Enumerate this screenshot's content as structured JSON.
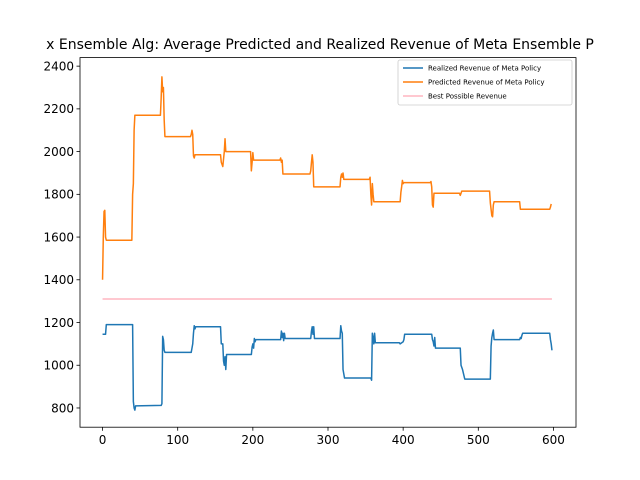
{
  "chart_data": {
    "type": "line",
    "title": "x Ensemble Alg: Average Predicted and Realized Revenue of Meta Ensemble P",
    "xlabel": "",
    "ylabel": "",
    "xlim": [
      -30,
      630
    ],
    "ylim": [
      710,
      2440
    ],
    "x_ticks": [
      0,
      100,
      200,
      300,
      400,
      500,
      600
    ],
    "y_ticks": [
      800,
      1000,
      1200,
      1400,
      1600,
      1800,
      2000,
      2200,
      2400
    ],
    "grid": false,
    "legend_position": "top-right",
    "series": [
      {
        "name": "Realized Revenue of Meta Policy",
        "color": "#1f77b4",
        "points": [
          [
            0,
            1145
          ],
          [
            4,
            1145
          ],
          [
            5,
            1190
          ],
          [
            40,
            1190
          ],
          [
            41,
            830
          ],
          [
            42,
            800
          ],
          [
            43,
            790
          ],
          [
            44,
            810
          ],
          [
            78,
            812
          ],
          [
            79,
            820
          ],
          [
            80,
            1135
          ],
          [
            81,
            1120
          ],
          [
            82,
            1070
          ],
          [
            83,
            1060
          ],
          [
            118,
            1060
          ],
          [
            119,
            1080
          ],
          [
            120,
            1100
          ],
          [
            121,
            1150
          ],
          [
            122,
            1185
          ],
          [
            123,
            1170
          ],
          [
            124,
            1180
          ],
          [
            157,
            1180
          ],
          [
            158,
            1100
          ],
          [
            160,
            1100
          ],
          [
            161,
            1020
          ],
          [
            162,
            1000
          ],
          [
            163,
            1040
          ],
          [
            164,
            980
          ],
          [
            165,
            1050
          ],
          [
            198,
            1050
          ],
          [
            199,
            1085
          ],
          [
            200,
            1100
          ],
          [
            201,
            1080
          ],
          [
            202,
            1125
          ],
          [
            203,
            1110
          ],
          [
            204,
            1120
          ],
          [
            237,
            1120
          ],
          [
            238,
            1160
          ],
          [
            239,
            1130
          ],
          [
            240,
            1150
          ],
          [
            241,
            1115
          ],
          [
            242,
            1150
          ],
          [
            243,
            1125
          ],
          [
            277,
            1125
          ],
          [
            278,
            1160
          ],
          [
            279,
            1180
          ],
          [
            280,
            1145
          ],
          [
            281,
            1180
          ],
          [
            282,
            1125
          ],
          [
            316,
            1125
          ],
          [
            317,
            1185
          ],
          [
            318,
            1160
          ],
          [
            319,
            1150
          ],
          [
            320,
            980
          ],
          [
            321,
            960
          ],
          [
            322,
            940
          ],
          [
            357,
            940
          ],
          [
            358,
            930
          ],
          [
            359,
            1150
          ],
          [
            360,
            1130
          ],
          [
            361,
            1100
          ],
          [
            362,
            1150
          ],
          [
            363,
            1105
          ],
          [
            395,
            1105
          ],
          [
            396,
            1100
          ],
          [
            400,
            1110
          ],
          [
            401,
            1120
          ],
          [
            402,
            1145
          ],
          [
            438,
            1145
          ],
          [
            439,
            1120
          ],
          [
            440,
            1110
          ],
          [
            441,
            1090
          ],
          [
            442,
            1130
          ],
          [
            443,
            1080
          ],
          [
            476,
            1080
          ],
          [
            477,
            1000
          ],
          [
            479,
            980
          ],
          [
            481,
            950
          ],
          [
            482,
            935
          ],
          [
            516,
            935
          ],
          [
            517,
            1090
          ],
          [
            518,
            1130
          ],
          [
            519,
            1150
          ],
          [
            520,
            1165
          ],
          [
            521,
            1120
          ],
          [
            555,
            1120
          ],
          [
            556,
            1130
          ],
          [
            557,
            1125
          ],
          [
            558,
            1140
          ],
          [
            559,
            1150
          ],
          [
            595,
            1150
          ],
          [
            596,
            1120
          ],
          [
            597,
            1100
          ],
          [
            598,
            1070
          ]
        ]
      },
      {
        "name": "Predicted Revenue of Meta Policy",
        "color": "#ff7f0e",
        "points": [
          [
            0,
            1400
          ],
          [
            1,
            1600
          ],
          [
            2,
            1720
          ],
          [
            3,
            1725
          ],
          [
            4,
            1600
          ],
          [
            5,
            1585
          ],
          [
            39,
            1585
          ],
          [
            40,
            1800
          ],
          [
            41,
            1850
          ],
          [
            42,
            2100
          ],
          [
            43,
            2170
          ],
          [
            77,
            2170
          ],
          [
            78,
            2250
          ],
          [
            79,
            2350
          ],
          [
            80,
            2280
          ],
          [
            81,
            2300
          ],
          [
            82,
            2150
          ],
          [
            83,
            2070
          ],
          [
            117,
            2070
          ],
          [
            118,
            2080
          ],
          [
            119,
            2100
          ],
          [
            120,
            2080
          ],
          [
            121,
            1980
          ],
          [
            122,
            1970
          ],
          [
            123,
            1985
          ],
          [
            157,
            1985
          ],
          [
            158,
            1950
          ],
          [
            160,
            1930
          ],
          [
            161,
            1965
          ],
          [
            162,
            2000
          ],
          [
            163,
            2060
          ],
          [
            164,
            2000
          ],
          [
            197,
            2000
          ],
          [
            198,
            1910
          ],
          [
            199,
            1950
          ],
          [
            200,
            1995
          ],
          [
            201,
            1960
          ],
          [
            202,
            1960
          ],
          [
            236,
            1960
          ],
          [
            237,
            1970
          ],
          [
            238,
            1950
          ],
          [
            239,
            1960
          ],
          [
            240,
            1895
          ],
          [
            276,
            1895
          ],
          [
            277,
            1910
          ],
          [
            278,
            1950
          ],
          [
            279,
            1985
          ],
          [
            280,
            1950
          ],
          [
            281,
            1835
          ],
          [
            316,
            1835
          ],
          [
            317,
            1880
          ],
          [
            318,
            1895
          ],
          [
            319,
            1880
          ],
          [
            320,
            1900
          ],
          [
            321,
            1870
          ],
          [
            355,
            1870
          ],
          [
            356,
            1880
          ],
          [
            357,
            1800
          ],
          [
            358,
            1750
          ],
          [
            359,
            1850
          ],
          [
            360,
            1800
          ],
          [
            361,
            1765
          ],
          [
            396,
            1765
          ],
          [
            397,
            1810
          ],
          [
            398,
            1835
          ],
          [
            399,
            1865
          ],
          [
            400,
            1850
          ],
          [
            401,
            1855
          ],
          [
            436,
            1855
          ],
          [
            437,
            1860
          ],
          [
            438,
            1835
          ],
          [
            439,
            1750
          ],
          [
            440,
            1740
          ],
          [
            441,
            1805
          ],
          [
            475,
            1805
          ],
          [
            476,
            1795
          ],
          [
            478,
            1815
          ],
          [
            515,
            1815
          ],
          [
            516,
            1760
          ],
          [
            518,
            1700
          ],
          [
            519,
            1695
          ],
          [
            520,
            1750
          ],
          [
            521,
            1765
          ],
          [
            555,
            1765
          ],
          [
            556,
            1730
          ],
          [
            595,
            1730
          ],
          [
            596,
            1740
          ],
          [
            597,
            1755
          ]
        ]
      },
      {
        "name": "Best Possible Revenue",
        "color": "#ffb6c1",
        "points": [
          [
            0,
            1310
          ],
          [
            598,
            1310
          ]
        ]
      }
    ]
  }
}
